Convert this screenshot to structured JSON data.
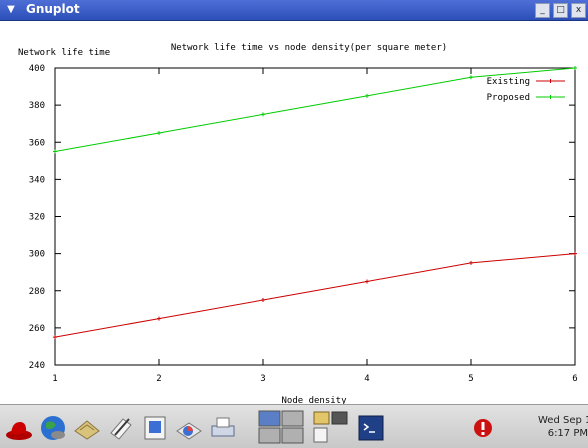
{
  "window": {
    "title": "Gnuplot"
  },
  "titlebar_buttons": [
    "minimize-icon",
    "maximize-icon",
    "close-icon"
  ],
  "chart_data": {
    "type": "line",
    "title": "Network life time vs node density(per square meter)",
    "xlabel": "Node density",
    "ylabel": "Network life time",
    "x": [
      1,
      2,
      3,
      4,
      5,
      6
    ],
    "xticks": [
      "1",
      "2",
      "3",
      "4",
      "5",
      "6"
    ],
    "yticks": [
      "240",
      "260",
      "280",
      "300",
      "320",
      "340",
      "360",
      "380",
      "400"
    ],
    "xlim": [
      1,
      6
    ],
    "ylim": [
      240,
      400
    ],
    "legend_position": "top-right",
    "grid": false,
    "series": [
      {
        "name": "Existing",
        "color": "#cc0000",
        "values": [
          255,
          265,
          275,
          285,
          295,
          300
        ]
      },
      {
        "name": "Proposed",
        "color": "#00cc00",
        "values": [
          355,
          365,
          375,
          385,
          395,
          400
        ]
      }
    ]
  },
  "taskbar": {
    "icons": [
      "redhat-menu-icon",
      "web-browser-icon",
      "email-icon",
      "text-editor-icon",
      "presentation-icon",
      "spreadsheet-icon",
      "printer-icon",
      "workspace-switcher-icon",
      "file-manager-icon",
      "terminal-icon",
      "update-alert-icon"
    ],
    "clock_date": "Wed Sep 1",
    "clock_time": "6:17 PM"
  }
}
